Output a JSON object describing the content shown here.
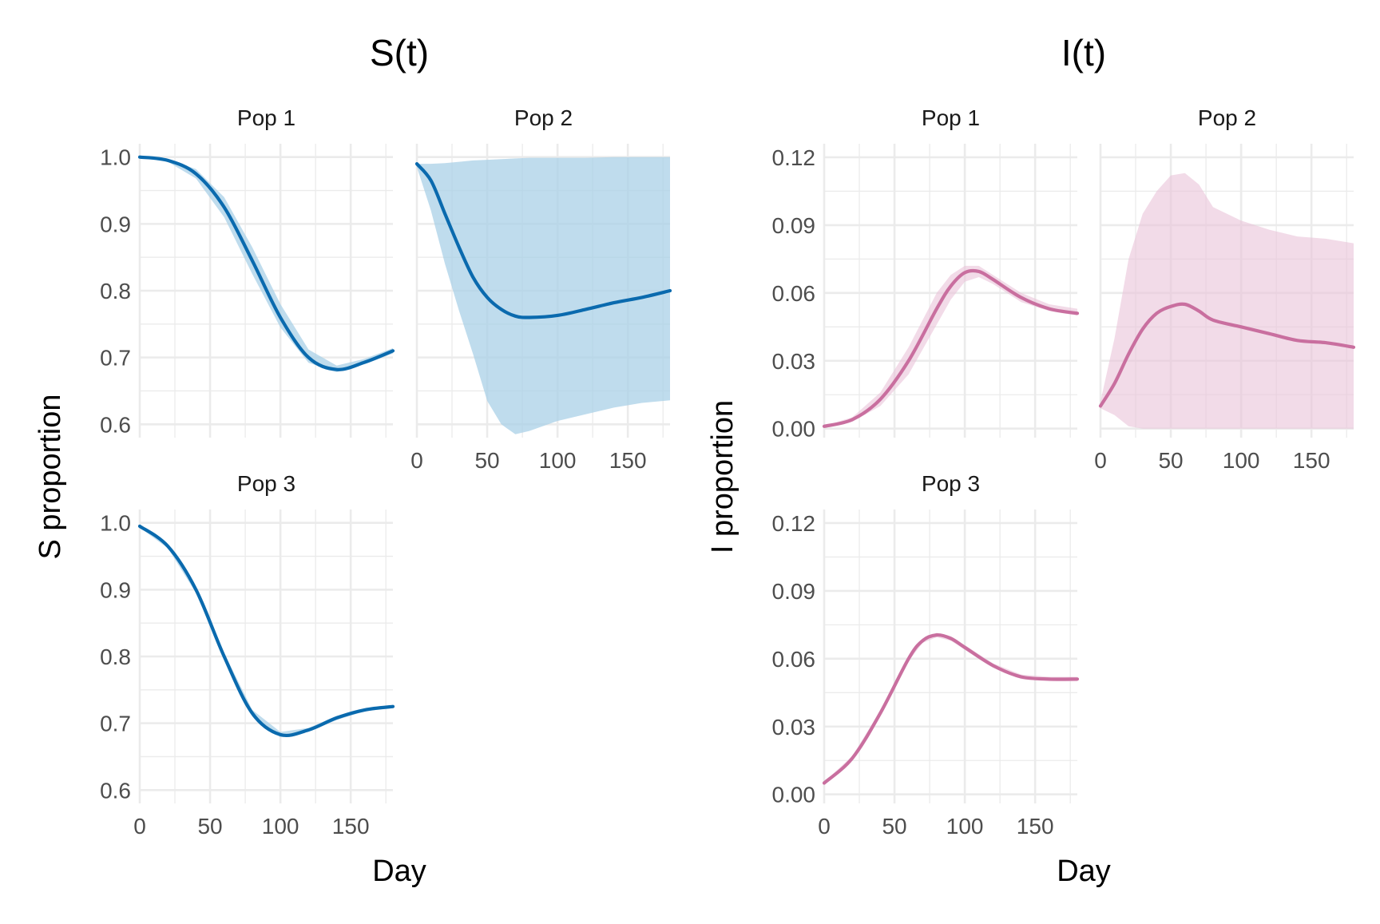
{
  "colors": {
    "s_line": "#0a6aae",
    "s_band": "#a9d0e7",
    "i_line": "#c96f9f",
    "i_band": "#e9c3d8",
    "grid": "#ebebeb"
  },
  "chart_data": [
    {
      "type": "line",
      "title": "S(t)",
      "xlabel": "Day",
      "ylabel": "S proportion",
      "xlim": [
        0,
        180
      ],
      "x_ticks": [
        0,
        50,
        100,
        150
      ],
      "ylim": [
        0.58,
        1.02
      ],
      "y_ticks": [
        0.6,
        0.7,
        0.8,
        0.9,
        1.0
      ],
      "y_tick_labels": [
        "0.6",
        "0.7",
        "0.8",
        "0.9",
        "1.0"
      ],
      "legend": "none",
      "grid": true,
      "facets": [
        {
          "label": "Pop 1",
          "x": [
            0,
            20,
            40,
            60,
            80,
            100,
            120,
            140,
            160,
            180
          ],
          "y": [
            1.0,
            0.995,
            0.975,
            0.925,
            0.845,
            0.76,
            0.7,
            0.682,
            0.693,
            0.71
          ],
          "band_lower": [
            0.999,
            0.993,
            0.968,
            0.91,
            0.825,
            0.745,
            0.692,
            0.678,
            0.69,
            0.706
          ],
          "band_upper": [
            1.0,
            0.997,
            0.982,
            0.94,
            0.865,
            0.78,
            0.712,
            0.688,
            0.698,
            0.714
          ]
        },
        {
          "label": "Pop 2",
          "x": [
            0,
            10,
            20,
            30,
            40,
            50,
            60,
            70,
            80,
            100,
            120,
            140,
            160,
            180
          ],
          "y": [
            0.99,
            0.965,
            0.915,
            0.865,
            0.82,
            0.79,
            0.772,
            0.762,
            0.76,
            0.763,
            0.772,
            0.782,
            0.79,
            0.8
          ],
          "band_lower": [
            0.985,
            0.92,
            0.84,
            0.77,
            0.705,
            0.635,
            0.6,
            0.585,
            0.59,
            0.605,
            0.615,
            0.625,
            0.632,
            0.636
          ],
          "band_upper": [
            0.99,
            0.99,
            0.991,
            0.993,
            0.995,
            0.996,
            0.997,
            0.998,
            0.999,
            0.999,
            0.999,
            1.0,
            1.0,
            1.0
          ]
        },
        {
          "label": "Pop 3",
          "x": [
            0,
            20,
            40,
            60,
            80,
            100,
            120,
            140,
            160,
            180
          ],
          "y": [
            0.995,
            0.965,
            0.9,
            0.8,
            0.715,
            0.683,
            0.69,
            0.708,
            0.72,
            0.725
          ],
          "band_lower": [
            0.993,
            0.962,
            0.895,
            0.795,
            0.71,
            0.679,
            0.687,
            0.705,
            0.718,
            0.723
          ],
          "band_upper": [
            0.997,
            0.968,
            0.905,
            0.805,
            0.72,
            0.687,
            0.693,
            0.711,
            0.722,
            0.727
          ]
        }
      ]
    },
    {
      "type": "line",
      "title": "I(t)",
      "xlabel": "Day",
      "ylabel": "I proportion",
      "xlim": [
        0,
        180
      ],
      "x_ticks": [
        0,
        50,
        100,
        150
      ],
      "ylim": [
        -0.004,
        0.126
      ],
      "y_ticks": [
        0.0,
        0.03,
        0.06,
        0.09,
        0.12
      ],
      "y_tick_labels": [
        "0.00",
        "0.03",
        "0.06",
        "0.09",
        "0.12"
      ],
      "legend": "none",
      "grid": true,
      "facets": [
        {
          "label": "Pop 1",
          "x": [
            0,
            20,
            40,
            60,
            80,
            90,
            100,
            110,
            120,
            140,
            160,
            180
          ],
          "y": [
            0.001,
            0.004,
            0.013,
            0.03,
            0.053,
            0.063,
            0.069,
            0.0695,
            0.066,
            0.058,
            0.053,
            0.051
          ],
          "band_lower": [
            0.0008,
            0.003,
            0.01,
            0.024,
            0.046,
            0.057,
            0.065,
            0.067,
            0.064,
            0.056,
            0.052,
            0.05
          ],
          "band_upper": [
            0.0012,
            0.005,
            0.016,
            0.036,
            0.06,
            0.068,
            0.072,
            0.072,
            0.068,
            0.06,
            0.055,
            0.053
          ]
        },
        {
          "label": "Pop 2",
          "x": [
            0,
            10,
            20,
            30,
            40,
            50,
            60,
            70,
            80,
            100,
            120,
            140,
            160,
            180
          ],
          "y": [
            0.01,
            0.02,
            0.033,
            0.044,
            0.051,
            0.054,
            0.055,
            0.052,
            0.048,
            0.045,
            0.042,
            0.039,
            0.038,
            0.036
          ],
          "band_lower": [
            0.009,
            0.006,
            0.001,
            0.0,
            0.0,
            0.0,
            0.0,
            0.0,
            0.0,
            0.0,
            0.0,
            0.0,
            0.0,
            0.0
          ],
          "band_upper": [
            0.012,
            0.04,
            0.075,
            0.095,
            0.105,
            0.112,
            0.113,
            0.108,
            0.098,
            0.092,
            0.088,
            0.085,
            0.084,
            0.082
          ]
        },
        {
          "label": "Pop 3",
          "x": [
            0,
            20,
            40,
            60,
            70,
            80,
            90,
            100,
            120,
            140,
            160,
            180
          ],
          "y": [
            0.005,
            0.016,
            0.036,
            0.06,
            0.068,
            0.0705,
            0.069,
            0.065,
            0.057,
            0.052,
            0.051,
            0.051
          ],
          "band_lower": [
            0.0045,
            0.015,
            0.035,
            0.059,
            0.067,
            0.0695,
            0.068,
            0.064,
            0.056,
            0.051,
            0.05,
            0.05
          ],
          "band_upper": [
            0.0055,
            0.017,
            0.037,
            0.061,
            0.069,
            0.0715,
            0.07,
            0.066,
            0.058,
            0.053,
            0.052,
            0.052
          ]
        }
      ]
    }
  ]
}
